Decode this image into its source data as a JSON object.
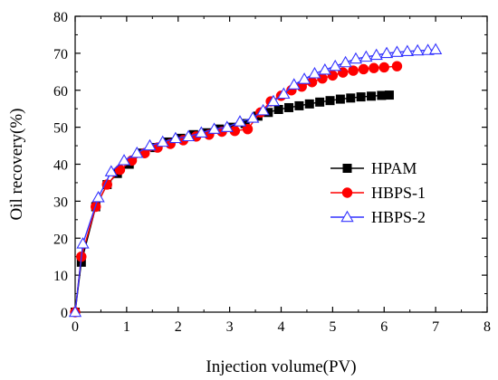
{
  "chart_data": {
    "type": "line",
    "title": "",
    "xlabel": "Injection volume(PV)",
    "ylabel": "Oil recovery(%)",
    "xlim": [
      0,
      8
    ],
    "ylim": [
      0,
      80
    ],
    "xticks": [
      "0",
      "1",
      "2",
      "3",
      "4",
      "5",
      "6",
      "7",
      "8"
    ],
    "yticks": [
      "0",
      "10",
      "20",
      "30",
      "40",
      "50",
      "60",
      "70",
      "80"
    ],
    "grid": false,
    "legend_position": "right-center",
    "series": [
      {
        "name": "HPAM",
        "color": "#000000",
        "marker": "square-filled",
        "x": [
          0,
          0.12,
          0.4,
          0.62,
          0.82,
          1.05,
          1.3,
          1.55,
          1.8,
          2.05,
          2.3,
          2.55,
          2.8,
          3.05,
          3.3,
          3.55,
          3.75,
          3.95,
          4.15,
          4.35,
          4.55,
          4.75,
          4.95,
          5.15,
          5.35,
          5.55,
          5.75,
          5.95,
          6.1
        ],
        "y": [
          0,
          13.5,
          28.5,
          34.5,
          37.5,
          40,
          43,
          44.5,
          46,
          47,
          48,
          48.5,
          49.5,
          50,
          51,
          53,
          54,
          54.8,
          55.3,
          55.8,
          56.3,
          56.8,
          57.2,
          57.6,
          57.9,
          58.2,
          58.4,
          58.6,
          58.7
        ]
      },
      {
        "name": "HBPS-1",
        "color": "#ff0000",
        "marker": "circle-filled",
        "x": [
          0,
          0.12,
          0.4,
          0.62,
          0.87,
          1.1,
          1.35,
          1.6,
          1.85,
          2.1,
          2.35,
          2.6,
          2.85,
          3.1,
          3.35,
          3.6,
          3.8,
          4.0,
          4.2,
          4.4,
          4.6,
          4.8,
          5.0,
          5.2,
          5.4,
          5.6,
          5.8,
          6.0,
          6.25
        ],
        "y": [
          0,
          15,
          28.5,
          34.5,
          38.5,
          41,
          43,
          44.5,
          45.5,
          46.5,
          47.5,
          48,
          48.8,
          49,
          49.5,
          54,
          57,
          58.5,
          60,
          61,
          62.2,
          63.2,
          64,
          64.8,
          65.3,
          65.7,
          66,
          66.2,
          66.5
        ]
      },
      {
        "name": "HBPS-2",
        "color": "#3333ff",
        "marker": "triangle-open",
        "x": [
          0,
          0.15,
          0.45,
          0.7,
          0.95,
          1.2,
          1.45,
          1.7,
          1.95,
          2.2,
          2.45,
          2.7,
          2.95,
          3.2,
          3.45,
          3.65,
          3.85,
          4.05,
          4.25,
          4.45,
          4.65,
          4.85,
          5.05,
          5.25,
          5.45,
          5.65,
          5.85,
          6.05,
          6.25,
          6.45,
          6.65,
          6.85,
          7.0
        ],
        "y": [
          0,
          18.5,
          31,
          38,
          41,
          43,
          45,
          46,
          47,
          47.5,
          48.5,
          49.5,
          50,
          51.5,
          52.5,
          54.5,
          57,
          59,
          61.5,
          63,
          64.5,
          65.5,
          66.5,
          67.5,
          68.5,
          69,
          69.5,
          70,
          70.3,
          70.5,
          70.7,
          70.8,
          71
        ]
      }
    ]
  }
}
